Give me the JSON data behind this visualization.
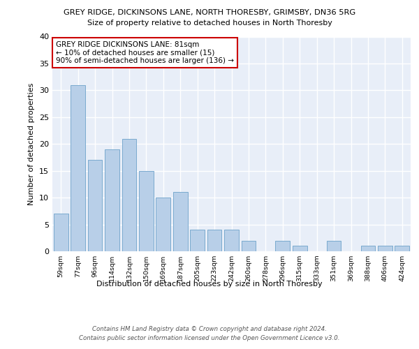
{
  "title1": "GREY RIDGE, DICKINSONS LANE, NORTH THORESBY, GRIMSBY, DN36 5RG",
  "title2": "Size of property relative to detached houses in North Thoresby",
  "xlabel": "Distribution of detached houses by size in North Thoresby",
  "ylabel": "Number of detached properties",
  "categories": [
    "59sqm",
    "77sqm",
    "96sqm",
    "114sqm",
    "132sqm",
    "150sqm",
    "169sqm",
    "187sqm",
    "205sqm",
    "223sqm",
    "242sqm",
    "260sqm",
    "278sqm",
    "296sqm",
    "315sqm",
    "333sqm",
    "351sqm",
    "369sqm",
    "388sqm",
    "406sqm",
    "424sqm"
  ],
  "values": [
    7,
    31,
    17,
    19,
    21,
    15,
    10,
    11,
    4,
    4,
    4,
    2,
    0,
    2,
    1,
    0,
    2,
    0,
    1,
    1,
    1
  ],
  "bar_color": "#b8cfe8",
  "bar_edge_color": "#7aaacf",
  "annotation_text": "GREY RIDGE DICKINSONS LANE: 81sqm\n← 10% of detached houses are smaller (15)\n90% of semi-detached houses are larger (136) →",
  "annotation_box_color": "white",
  "annotation_box_edge_color": "#cc0000",
  "background_color": "#e8eef8",
  "grid_color": "white",
  "ylim": [
    0,
    40
  ],
  "yticks": [
    0,
    5,
    10,
    15,
    20,
    25,
    30,
    35,
    40
  ],
  "footer1": "Contains HM Land Registry data © Crown copyright and database right 2024.",
  "footer2": "Contains public sector information licensed under the Open Government Licence v3.0."
}
